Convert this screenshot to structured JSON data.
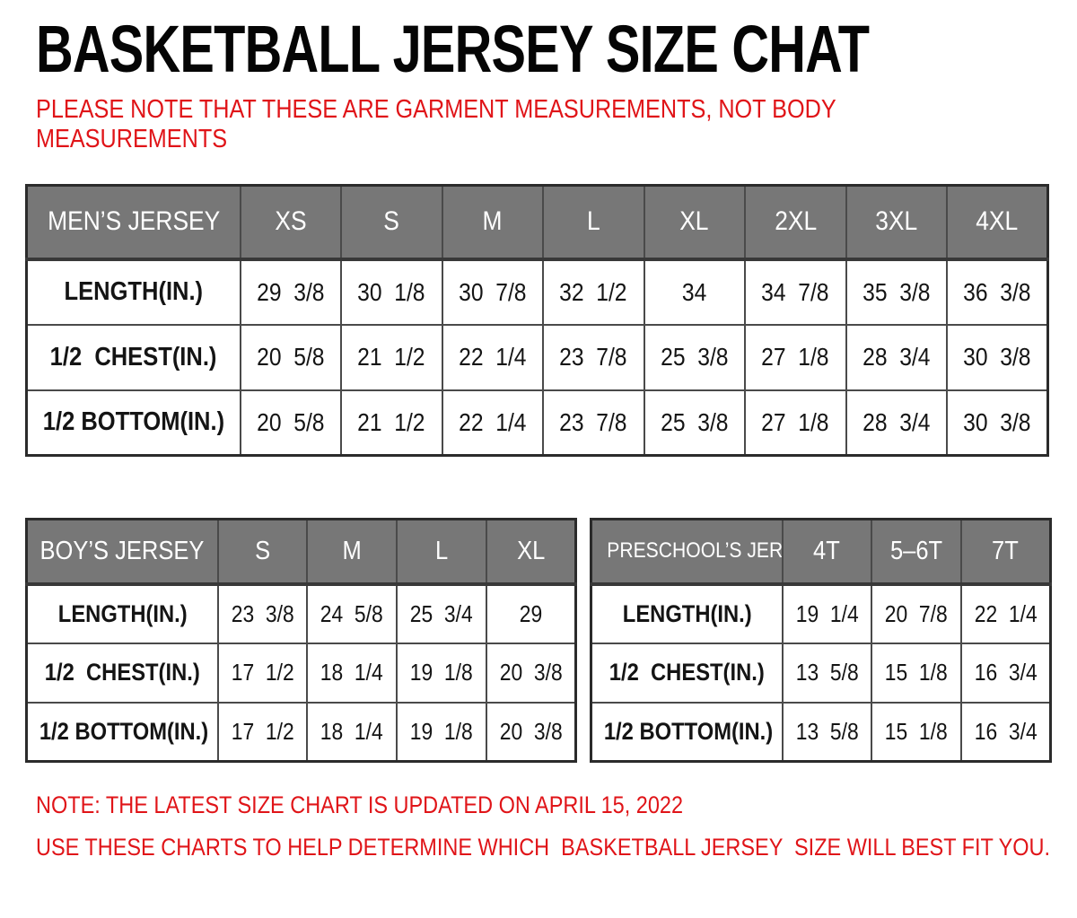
{
  "header": {
    "title": "BASKETBALL JERSEY SIZE CHAT",
    "note_line1": "PLEASE NOTE THAT THESE ARE GARMENT MEASUREMENTS, NOT BODY",
    "note_line2": "MEASUREMENTS"
  },
  "tables": {
    "mens": {
      "name_header": "MEN’S JERSEY",
      "sizes": [
        "XS",
        "S",
        "M",
        "L",
        "XL",
        "2XL",
        "3XL",
        "4XL"
      ],
      "rows": [
        {
          "label": "LENGTH(IN.)",
          "values": [
            "29  3/8",
            "30  1/8",
            "30  7/8",
            "32  1/2",
            "34",
            "34  7/8",
            "35  3/8",
            "36  3/8"
          ]
        },
        {
          "label": "1/2  CHEST(IN.)",
          "values": [
            "20  5/8",
            "21  1/2",
            "22  1/4",
            "23  7/8",
            "25  3/8",
            "27  1/8",
            "28  3/4",
            "30  3/8"
          ]
        },
        {
          "label": "1/2 BOTTOM(IN.)",
          "values": [
            "20  5/8",
            "21  1/2",
            "22  1/4",
            "23  7/8",
            "25  3/8",
            "27  1/8",
            "28  3/4",
            "30  3/8"
          ]
        }
      ]
    },
    "boys": {
      "name_header": "BOY’S JERSEY",
      "sizes": [
        "S",
        "M",
        "L",
        "XL"
      ],
      "rows": [
        {
          "label": "LENGTH(IN.)",
          "values": [
            "23  3/8",
            "24  5/8",
            "25  3/4",
            "29"
          ]
        },
        {
          "label": "1/2  CHEST(IN.)",
          "values": [
            "17  1/2",
            "18  1/4",
            "19  1/8",
            "20  3/8"
          ]
        },
        {
          "label": "1/2 BOTTOM(IN.)",
          "values": [
            "17  1/2",
            "18  1/4",
            "19  1/8",
            "20  3/8"
          ]
        }
      ]
    },
    "preschool": {
      "name_header": "PRESCHOOL’S JERSEY",
      "sizes": [
        "4T",
        "5–6T",
        "7T"
      ],
      "rows": [
        {
          "label": "LENGTH(IN.)",
          "values": [
            "19  1/4",
            "20  7/8",
            "22  1/4"
          ]
        },
        {
          "label": "1/2  CHEST(IN.)",
          "values": [
            "13  5/8",
            "15  1/8",
            "16  3/4"
          ]
        },
        {
          "label": "1/2 BOTTOM(IN.)",
          "values": [
            "13  5/8",
            "15  1/8",
            "16  3/4"
          ]
        }
      ]
    }
  },
  "footer": {
    "note1": "NOTE: THE LATEST SIZE CHART IS UPDATED ON APRIL 15, 2022",
    "note2": "USE THESE CHARTS TO HELP DETERMINE WHICH  BASKETBALL JERSEY  SIZE WILL BEST FIT YOU."
  },
  "colors": {
    "note_red": "#e01418",
    "header_bg": "#777777",
    "header_text": "#ffffff",
    "border": "#4a4a4a",
    "text": "#141414"
  }
}
